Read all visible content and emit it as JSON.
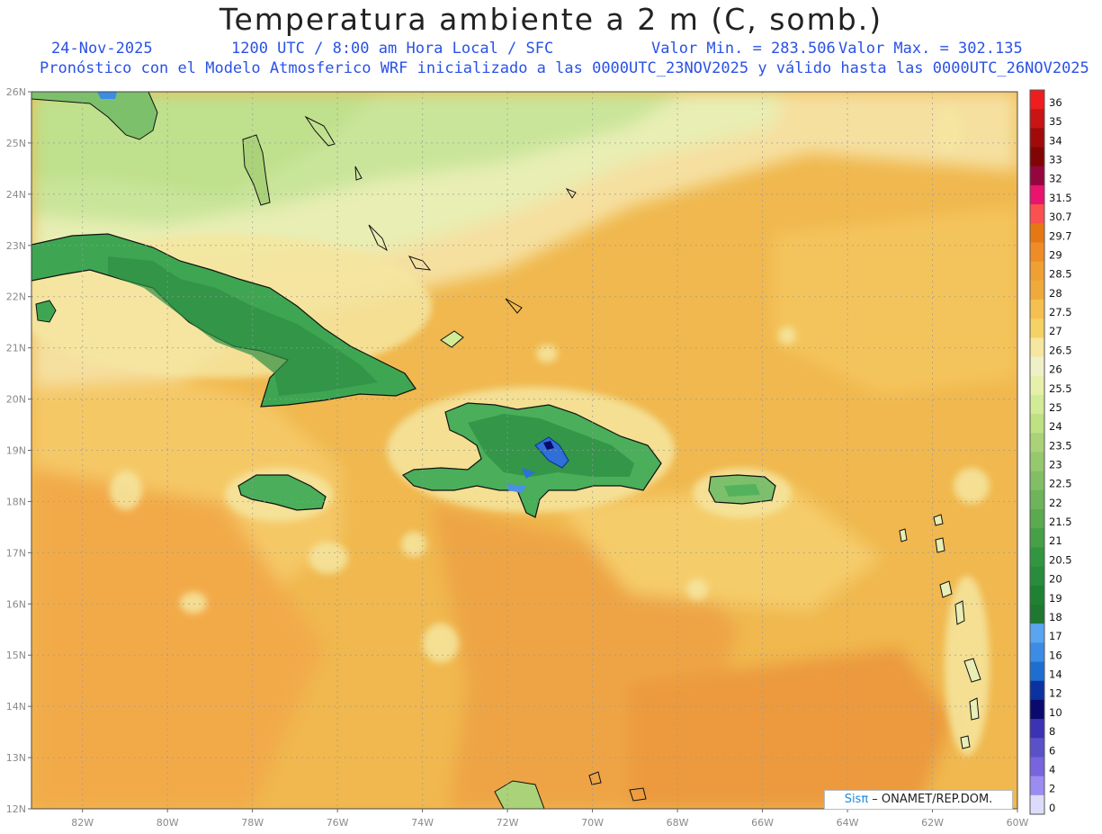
{
  "header": {
    "title": "Temperatura ambiente a 2 m (C, somb.)",
    "date": "24-Nov-2025",
    "time": "1200 UTC / 8:00 am Hora Local / SFC",
    "valmin": "Valor Min. = 283.506",
    "valmax": "Valor Max. = 302.135",
    "model_line": "Pronóstico con el Modelo Atmosferico WRF inicializado a las 0000UTC_23NOV2025 y válido hasta las  0000UTC_26NOV2025"
  },
  "map": {
    "lat_labels": [
      "26N",
      "25N",
      "24N",
      "23N",
      "22N",
      "21N",
      "20N",
      "19N",
      "18N",
      "17N",
      "16N",
      "15N",
      "14N",
      "13N",
      "12N"
    ],
    "lon_labels": [
      "82W",
      "80W",
      "78W",
      "76W",
      "74W",
      "72W",
      "70W",
      "68W",
      "66W",
      "64W",
      "62W",
      "60W"
    ],
    "lat_range": [
      12,
      26
    ],
    "lon_range": [
      -83.2,
      -60
    ]
  },
  "colorbar": {
    "levels": [
      "36",
      "35",
      "34",
      "33",
      "32",
      "31.5",
      "30.7",
      "29.7",
      "29",
      "28.5",
      "28",
      "27.5",
      "27",
      "26.5",
      "26",
      "25.5",
      "25",
      "24",
      "23.5",
      "23",
      "22.5",
      "22",
      "21.5",
      "21",
      "20.5",
      "20",
      "19",
      "18",
      "17",
      "16",
      "14",
      "12",
      "10",
      "8",
      "6",
      "4",
      "2",
      "0"
    ],
    "colors": [
      "#ee1e1e",
      "#c81414",
      "#a00a0a",
      "#820505",
      "#96063e",
      "#e8146e",
      "#fa5050",
      "#e67814",
      "#f08c28",
      "#f0a032",
      "#f0aa3c",
      "#f5c050",
      "#f5d264",
      "#f5e6a0",
      "#f0f0c8",
      "#e6f0aa",
      "#d2eb96",
      "#bee182",
      "#aad278",
      "#96c86e",
      "#82be64",
      "#6eb45a",
      "#5aaa50",
      "#46a046",
      "#329641",
      "#288c3c",
      "#1e8232",
      "#1e7832",
      "#5aa5f0",
      "#3c8ce6",
      "#1e6ed2",
      "#0a32a0",
      "#0a0a6e",
      "#3c32b4",
      "#5a50c8",
      "#7864dc",
      "#9a8cf0",
      "#dcdcfa"
    ]
  },
  "credit": {
    "sis": "Sisπ",
    "text": " – ONAMET/REP.DOM."
  }
}
